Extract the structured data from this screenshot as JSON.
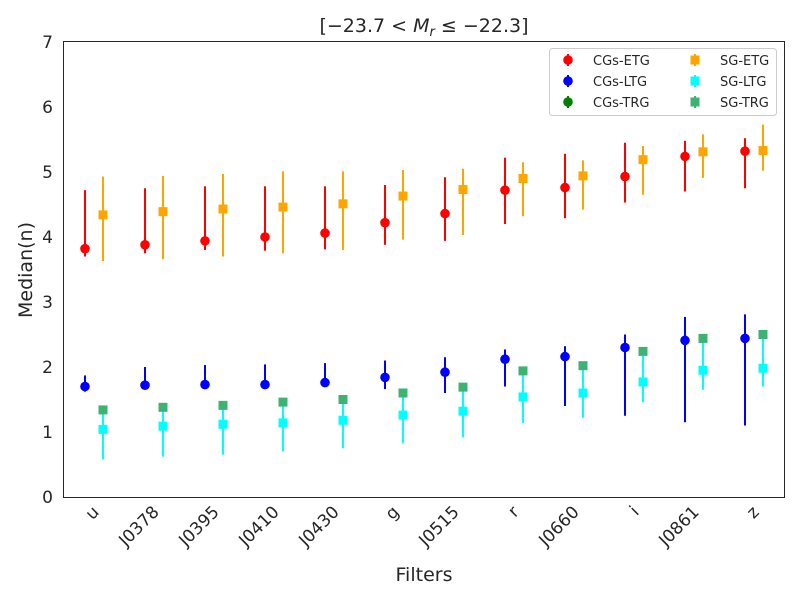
{
  "chart_data": {
    "type": "scatter",
    "title": "[−23.7 < M_r ≤ −22.3]",
    "title_parts": {
      "open": "[−23.7 < ",
      "m": "M",
      "sub": "r",
      "close": " ≤ −22.3]"
    },
    "xlabel": "Filters",
    "ylabel": "Median(n)",
    "categories": [
      "u",
      "J0378",
      "J0395",
      "J0410",
      "J0430",
      "g",
      "J0515",
      "r",
      "J0660",
      "i",
      "J0861",
      "z"
    ],
    "ylim": [
      0,
      7
    ],
    "yticks": [
      0,
      1,
      2,
      3,
      4,
      5,
      6,
      7
    ],
    "legend_position": "top-right",
    "series": [
      {
        "name": "CGs-ETG",
        "marker": "circle",
        "color": "#ff0000",
        "offset": -0.15,
        "values": [
          3.82,
          3.88,
          3.94,
          4.0,
          4.06,
          4.22,
          4.36,
          4.72,
          4.76,
          4.93,
          5.24,
          5.32
        ],
        "err_low": [
          3.7,
          3.75,
          3.8,
          3.79,
          3.81,
          3.88,
          3.94,
          4.2,
          4.29,
          4.53,
          4.7,
          4.75
        ],
        "err_high": [
          4.72,
          4.75,
          4.78,
          4.78,
          4.78,
          4.8,
          4.92,
          5.22,
          5.28,
          5.45,
          5.48,
          5.52
        ]
      },
      {
        "name": "CGs-LTG",
        "marker": "circle",
        "color": "#0000ff",
        "offset": -0.15,
        "values": [
          1.7,
          1.72,
          1.73,
          1.73,
          1.76,
          1.84,
          1.92,
          2.12,
          2.16,
          2.3,
          2.41,
          2.44
        ],
        "err_low": [
          1.62,
          1.67,
          1.67,
          1.67,
          1.7,
          1.66,
          1.6,
          1.7,
          1.4,
          1.25,
          1.15,
          1.1
        ],
        "err_high": [
          1.87,
          2.0,
          2.03,
          2.04,
          2.06,
          2.1,
          2.15,
          2.27,
          2.32,
          2.5,
          2.77,
          2.81
        ]
      },
      {
        "name": "CGs-TRG",
        "marker": "circle",
        "color": "#008000",
        "offset": -0.15,
        "values": [],
        "err_low": [],
        "err_high": []
      },
      {
        "name": "SG-ETG",
        "marker": "square",
        "color": "#ffa500",
        "offset": 0.15,
        "values": [
          4.34,
          4.39,
          4.43,
          4.46,
          4.51,
          4.63,
          4.73,
          4.9,
          4.94,
          5.19,
          5.31,
          5.33
        ],
        "err_low": [
          3.63,
          3.66,
          3.7,
          3.75,
          3.8,
          3.96,
          4.03,
          4.32,
          4.42,
          4.65,
          4.91,
          5.02
        ],
        "err_high": [
          4.93,
          4.94,
          4.97,
          5.01,
          5.01,
          5.03,
          5.05,
          5.15,
          5.18,
          5.4,
          5.58,
          5.73
        ]
      },
      {
        "name": "SG-LTG",
        "marker": "square",
        "color": "#00ffff",
        "offset": 0.15,
        "values": [
          1.04,
          1.09,
          1.12,
          1.14,
          1.18,
          1.26,
          1.32,
          1.54,
          1.6,
          1.77,
          1.95,
          1.98
        ],
        "err_low": [
          0.58,
          0.62,
          0.65,
          0.7,
          0.75,
          0.83,
          0.92,
          1.14,
          1.22,
          1.46,
          1.65,
          1.7
        ],
        "err_high": [
          1.31,
          1.36,
          1.4,
          1.43,
          1.48,
          1.55,
          1.64,
          1.89,
          1.96,
          2.17,
          2.38,
          2.45
        ]
      },
      {
        "name": "SG-TRG",
        "marker": "square",
        "color": "#3cb371",
        "offset": 0.15,
        "values": [
          1.34,
          1.38,
          1.41,
          1.46,
          1.5,
          1.6,
          1.69,
          1.94,
          2.02,
          2.24,
          2.44,
          2.5
        ],
        "err_low": [],
        "err_high": []
      }
    ]
  }
}
